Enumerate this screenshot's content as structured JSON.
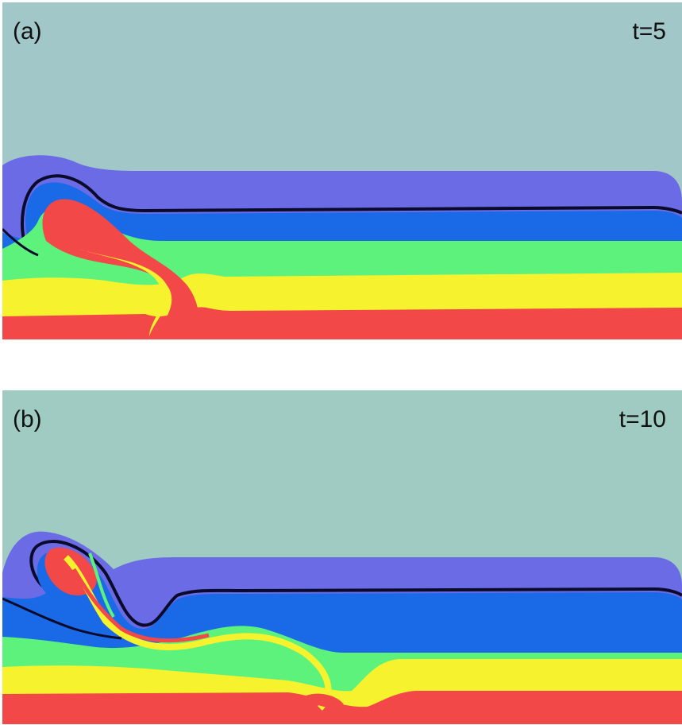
{
  "panels": [
    {
      "id": "a",
      "label": "(a)",
      "time": "t=5"
    },
    {
      "id": "b",
      "label": "(b)",
      "time": "t=10"
    }
  ],
  "colors": {
    "background": "#9fcbc3",
    "lavender": "#6b6be6",
    "blue": "#1a6ae8",
    "green": "#5cf27c",
    "yellow": "#f6f22e",
    "red": "#f24848",
    "contour": "#0a0a2a"
  }
}
